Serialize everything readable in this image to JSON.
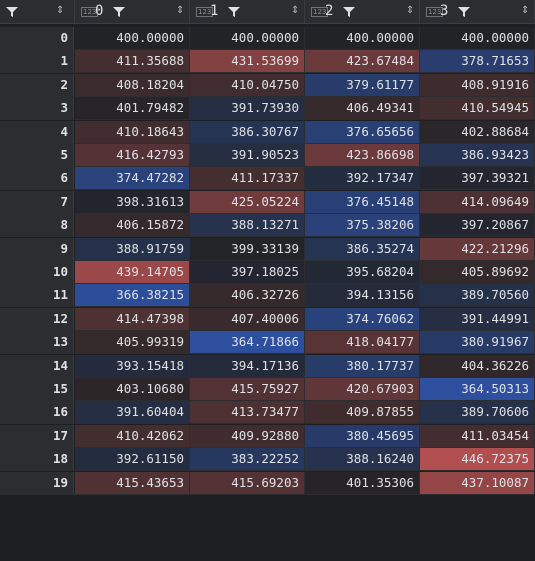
{
  "header": {
    "index_sort_icon": "sort-arrows-icon",
    "columns": [
      {
        "type": "123",
        "name": "0"
      },
      {
        "type": "123",
        "name": "1"
      },
      {
        "type": "123",
        "name": "2"
      },
      {
        "type": "123",
        "name": "3"
      }
    ]
  },
  "colors": {
    "low": "#2d4f9e",
    "mid": "#222326",
    "high": "#b14f50"
  },
  "value_range": [
    364.50313,
    446.72375
  ],
  "rows": [
    {
      "index": "0",
      "values": [
        "400.00000",
        "400.00000",
        "400.00000",
        "400.00000"
      ]
    },
    {
      "index": "1",
      "values": [
        "411.35688",
        "431.53699",
        "423.67484",
        "378.71653"
      ]
    },
    {
      "index": "2",
      "values": [
        "408.18204",
        "410.04750",
        "379.61177",
        "408.91916"
      ]
    },
    {
      "index": "3",
      "values": [
        "401.79482",
        "391.73930",
        "406.49341",
        "410.54945"
      ]
    },
    {
      "index": "4",
      "values": [
        "410.18643",
        "386.30767",
        "376.65656",
        "402.88684"
      ]
    },
    {
      "index": "5",
      "values": [
        "416.42793",
        "391.90523",
        "423.86698",
        "386.93423"
      ]
    },
    {
      "index": "6",
      "values": [
        "374.47282",
        "411.17337",
        "392.17347",
        "397.39321"
      ]
    },
    {
      "index": "7",
      "values": [
        "398.31613",
        "425.05224",
        "376.45148",
        "414.09649"
      ]
    },
    {
      "index": "8",
      "values": [
        "406.15872",
        "388.13271",
        "375.38206",
        "397.20867"
      ]
    },
    {
      "index": "9",
      "values": [
        "388.91759",
        "399.33139",
        "386.35274",
        "422.21296"
      ]
    },
    {
      "index": "10",
      "values": [
        "439.14705",
        "397.18025",
        "395.68204",
        "405.89692"
      ]
    },
    {
      "index": "11",
      "values": [
        "366.38215",
        "406.32726",
        "394.13156",
        "389.70560"
      ]
    },
    {
      "index": "12",
      "values": [
        "414.47398",
        "407.40006",
        "374.76062",
        "391.44991"
      ]
    },
    {
      "index": "13",
      "values": [
        "405.99319",
        "364.71866",
        "418.04177",
        "380.91967"
      ]
    },
    {
      "index": "14",
      "values": [
        "393.15418",
        "394.17136",
        "380.17737",
        "404.36226"
      ]
    },
    {
      "index": "15",
      "values": [
        "403.10680",
        "415.75927",
        "420.67903",
        "364.50313"
      ]
    },
    {
      "index": "16",
      "values": [
        "391.60404",
        "413.73477",
        "409.87855",
        "389.70606"
      ]
    },
    {
      "index": "17",
      "values": [
        "410.42062",
        "409.92880",
        "380.45695",
        "411.03454"
      ]
    },
    {
      "index": "18",
      "values": [
        "392.61150",
        "383.22252",
        "388.16240",
        "446.72375"
      ]
    },
    {
      "index": "19",
      "values": [
        "415.43653",
        "415.69203",
        "401.35306",
        "437.10087"
      ]
    }
  ]
}
